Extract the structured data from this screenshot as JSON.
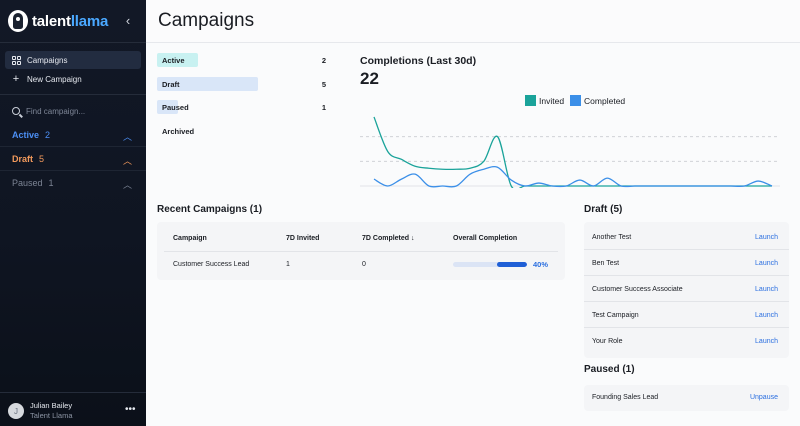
{
  "brand": {
    "name_part1": "talent",
    "name_part2": "llama"
  },
  "sidebar": {
    "collapse_icon": "chevron-left-icon",
    "nav": [
      {
        "label": "Campaigns",
        "icon": "grid-icon",
        "active": true
      },
      {
        "label": "New Campaign",
        "icon": "plus-icon",
        "active": false
      }
    ],
    "search_placeholder": "Find campaign...",
    "groups": [
      {
        "label": "Active",
        "count": "2",
        "color": "#4c8ff5"
      },
      {
        "label": "Draft",
        "count": "5",
        "color": "#f39a5c"
      },
      {
        "label": "Paused",
        "count": "1",
        "color": "#7c8494"
      }
    ],
    "user": {
      "initial": "J",
      "name": "Julian Bailey",
      "org": "Talent Llama",
      "menu": "•••"
    }
  },
  "header": {
    "title": "Campaigns"
  },
  "status_summary": [
    {
      "label": "Active",
      "count": "2",
      "color": "#c8f1f1",
      "fill": 0.4
    },
    {
      "label": "Draft",
      "count": "5",
      "color": "#d9e6f8",
      "fill": 1.0
    },
    {
      "label": "Paused",
      "count": "1",
      "color": "#d9e6f8",
      "fill": 0.2
    },
    {
      "label": "Archived",
      "count": "",
      "color": "#d9e6f8",
      "fill": 0
    }
  ],
  "completions": {
    "title": "Completions (Last 30d)",
    "value": "22",
    "legend": [
      {
        "label": "Invited",
        "color": "#1aa39a"
      },
      {
        "label": "Completed",
        "color": "#3b8fe8"
      }
    ]
  },
  "chart_data": {
    "type": "line",
    "title": "",
    "xlabel": "",
    "ylabel": "",
    "x": [
      1,
      2,
      3,
      4,
      5,
      6,
      7,
      8,
      9,
      10,
      11,
      12,
      13,
      14,
      15,
      16,
      17,
      18,
      19,
      20,
      21,
      22,
      23,
      24,
      25,
      26,
      27,
      28,
      29,
      30
    ],
    "series": [
      {
        "name": "Invited",
        "values": [
          7,
          3.5,
          2.7,
          2,
          1.8,
          1.7,
          1.7,
          1.8,
          2.5,
          5,
          0,
          0,
          0,
          0,
          0,
          0,
          0,
          0,
          0,
          0,
          0,
          0,
          0,
          0,
          0,
          0,
          0,
          0,
          0,
          0
        ]
      },
      {
        "name": "Completed",
        "values": [
          0.7,
          0,
          0.7,
          1.2,
          0,
          0,
          0,
          1.2,
          1.7,
          1.9,
          0.6,
          0,
          0.3,
          0,
          0,
          0.6,
          0,
          0.8,
          0,
          0,
          0,
          0,
          0,
          0,
          0,
          0,
          0,
          0,
          0.5,
          0
        ]
      }
    ],
    "ylim": [
      0,
      7.5
    ],
    "grid": true
  },
  "recent": {
    "title": "Recent Campaigns (1)",
    "headers": [
      "Campaign",
      "7D Invited",
      "7D Completed ↓",
      "Overall Completion"
    ],
    "rows": [
      {
        "campaign": "Customer Success Lead",
        "invited": "1",
        "completed": "0",
        "completion": 0.4,
        "completion_label": "40%"
      }
    ]
  },
  "draft": {
    "title": "Draft (5)",
    "items": [
      {
        "name": "Another Test",
        "action": "Launch"
      },
      {
        "name": "Ben Test",
        "action": "Launch"
      },
      {
        "name": "Customer Success Associate",
        "action": "Launch"
      },
      {
        "name": "Test Campaign",
        "action": "Launch"
      },
      {
        "name": "Your Role",
        "action": "Launch"
      }
    ]
  },
  "paused": {
    "title": "Paused (1)",
    "items": [
      {
        "name": "Founding Sales Lead",
        "action": "Unpause"
      }
    ]
  }
}
